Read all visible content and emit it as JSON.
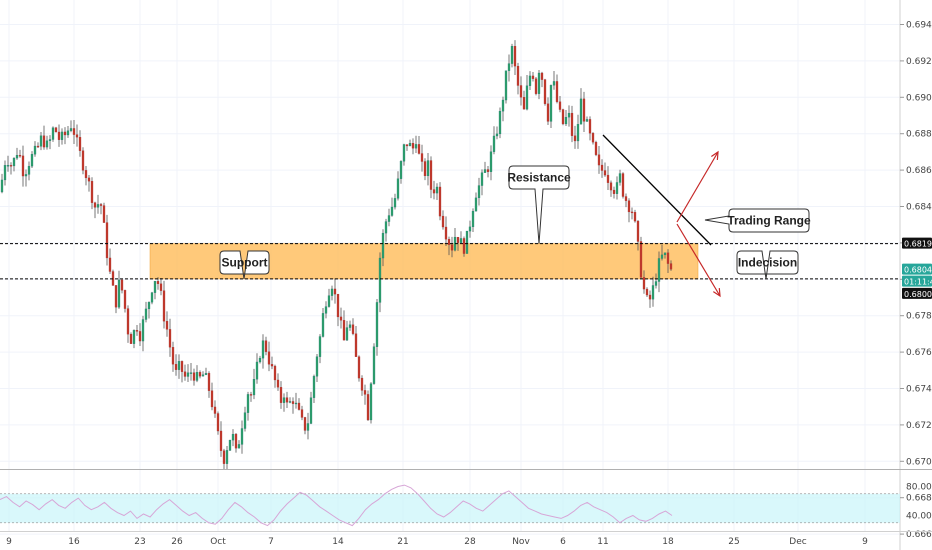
{
  "chart_data": {
    "type": "candlestick",
    "y_axis": {
      "ticks": [
        "0.69400",
        "0.69200",
        "0.69000",
        "0.68800",
        "0.68600",
        "0.68400",
        "0.68200",
        "0.68000",
        "0.67800",
        "0.67600",
        "0.67400",
        "0.67200",
        "0.67000",
        "0.66800",
        "0.66600"
      ],
      "range": [
        0.6652,
        0.6956
      ]
    },
    "x_axis": {
      "ticks": [
        "9",
        "16",
        "23",
        "26",
        "Oct",
        "7",
        "14",
        "21",
        "28",
        "Nov",
        "6",
        "11",
        "18",
        "25",
        "Dec",
        "9"
      ]
    },
    "levels": {
      "resistance": 0.68196,
      "support": 0.68002,
      "current": 0.68048
    },
    "price_tags": [
      {
        "label": "0.68196",
        "style": "dark"
      },
      {
        "label": "0.68048",
        "style": "green"
      },
      {
        "label": "01:11:48",
        "style": "green"
      },
      {
        "label": "0.68002",
        "style": "dark"
      }
    ],
    "annotations": [
      {
        "text": "Resistance"
      },
      {
        "text": "Support"
      },
      {
        "text": "Trading Range"
      },
      {
        "text": "Indecision"
      }
    ],
    "close_path": [
      [
        0,
        0.6848
      ],
      [
        6,
        0.6868
      ],
      [
        12,
        0.6862
      ],
      [
        18,
        0.6872
      ],
      [
        24,
        0.6858
      ],
      [
        30,
        0.6866
      ],
      [
        36,
        0.687
      ],
      [
        42,
        0.6878
      ],
      [
        48,
        0.6872
      ],
      [
        54,
        0.6884
      ],
      [
        60,
        0.6876
      ],
      [
        66,
        0.688
      ],
      [
        72,
        0.6886
      ],
      [
        78,
        0.6872
      ],
      [
        84,
        0.6862
      ],
      [
        90,
        0.685
      ],
      [
        96,
        0.6838
      ],
      [
        100,
        0.6845
      ],
      [
        104,
        0.6828
      ],
      [
        108,
        0.681
      ],
      [
        112,
        0.6796
      ],
      [
        116,
        0.6788
      ],
      [
        120,
        0.68
      ],
      [
        124,
        0.6788
      ],
      [
        128,
        0.6772
      ],
      [
        132,
        0.6766
      ],
      [
        136,
        0.6776
      ],
      [
        140,
        0.677
      ],
      [
        144,
        0.6778
      ],
      [
        148,
        0.6786
      ],
      [
        152,
        0.6796
      ],
      [
        156,
        0.6802
      ],
      [
        160,
        0.6794
      ],
      [
        164,
        0.678
      ],
      [
        168,
        0.677
      ],
      [
        172,
        0.6756
      ],
      [
        176,
        0.6748
      ],
      [
        180,
        0.6752
      ],
      [
        186,
        0.6745
      ],
      [
        192,
        0.675
      ],
      [
        198,
        0.6744
      ],
      [
        204,
        0.6748
      ],
      [
        210,
        0.6738
      ],
      [
        216,
        0.672
      ],
      [
        220,
        0.6708
      ],
      [
        224,
        0.6702
      ],
      [
        228,
        0.671
      ],
      [
        232,
        0.6716
      ],
      [
        236,
        0.6704
      ],
      [
        240,
        0.6714
      ],
      [
        244,
        0.6728
      ],
      [
        248,
        0.6738
      ],
      [
        252,
        0.6736
      ],
      [
        256,
        0.6748
      ],
      [
        260,
        0.676
      ],
      [
        264,
        0.6766
      ],
      [
        268,
        0.6758
      ],
      [
        272,
        0.675
      ],
      [
        276,
        0.6742
      ],
      [
        280,
        0.6732
      ],
      [
        284,
        0.6738
      ],
      [
        288,
        0.6728
      ],
      [
        292,
        0.6736
      ],
      [
        296,
        0.673
      ],
      [
        300,
        0.6724
      ],
      [
        304,
        0.6718
      ],
      [
        308,
        0.6722
      ],
      [
        312,
        0.6738
      ],
      [
        316,
        0.6756
      ],
      [
        320,
        0.6768
      ],
      [
        324,
        0.6784
      ],
      [
        328,
        0.6794
      ],
      [
        332,
        0.6798
      ],
      [
        336,
        0.6788
      ],
      [
        340,
        0.6776
      ],
      [
        344,
        0.6766
      ],
      [
        348,
        0.6778
      ],
      [
        352,
        0.677
      ],
      [
        356,
        0.6756
      ],
      [
        360,
        0.6745
      ],
      [
        364,
        0.674
      ],
      [
        368,
        0.6726
      ],
      [
        372,
        0.6752
      ],
      [
        376,
        0.678
      ],
      [
        380,
        0.6812
      ],
      [
        384,
        0.6828
      ],
      [
        388,
        0.6836
      ],
      [
        392,
        0.684
      ],
      [
        396,
        0.6846
      ],
      [
        400,
        0.686
      ],
      [
        404,
        0.6872
      ],
      [
        408,
        0.6876
      ],
      [
        412,
        0.687
      ],
      [
        416,
        0.6878
      ],
      [
        420,
        0.6864
      ],
      [
        424,
        0.6858
      ],
      [
        428,
        0.6862
      ],
      [
        432,
        0.6846
      ],
      [
        436,
        0.6854
      ],
      [
        440,
        0.6838
      ],
      [
        444,
        0.683
      ],
      [
        448,
        0.6822
      ],
      [
        452,
        0.6818
      ],
      [
        456,
        0.6826
      ],
      [
        460,
        0.682
      ],
      [
        464,
        0.6818
      ],
      [
        468,
        0.6824
      ],
      [
        472,
        0.6838
      ],
      [
        476,
        0.6848
      ],
      [
        480,
        0.6852
      ],
      [
        484,
        0.6858
      ],
      [
        488,
        0.6862
      ],
      [
        492,
        0.687
      ],
      [
        496,
        0.688
      ],
      [
        500,
        0.689
      ],
      [
        504,
        0.6904
      ],
      [
        508,
        0.6918
      ],
      [
        512,
        0.6926
      ],
      [
        516,
        0.6912
      ],
      [
        520,
        0.69
      ],
      [
        524,
        0.6892
      ],
      [
        528,
        0.6908
      ],
      [
        532,
        0.6916
      ],
      [
        536,
        0.6904
      ],
      [
        540,
        0.692
      ],
      [
        544,
        0.6902
      ],
      [
        548,
        0.689
      ],
      [
        552,
        0.6912
      ],
      [
        556,
        0.69
      ],
      [
        560,
        0.689
      ],
      [
        564,
        0.6884
      ],
      [
        568,
        0.6892
      ],
      [
        572,
        0.688
      ],
      [
        576,
        0.6872
      ],
      [
        580,
        0.69
      ],
      [
        584,
        0.689
      ],
      [
        588,
        0.6882
      ],
      [
        592,
        0.6874
      ],
      [
        596,
        0.6866
      ],
      [
        600,
        0.6858
      ],
      [
        604,
        0.6862
      ],
      [
        608,
        0.6856
      ],
      [
        612,
        0.6852
      ],
      [
        616,
        0.6848
      ],
      [
        620,
        0.6856
      ],
      [
        624,
        0.6846
      ],
      [
        628,
        0.6842
      ],
      [
        632,
        0.6838
      ],
      [
        636,
        0.6826
      ],
      [
        640,
        0.6808
      ],
      [
        644,
        0.6794
      ],
      [
        648,
        0.6786
      ],
      [
        652,
        0.6792
      ],
      [
        656,
        0.6802
      ],
      [
        660,
        0.681
      ],
      [
        664,
        0.6814
      ],
      [
        668,
        0.6808
      ],
      [
        672,
        0.6804
      ]
    ],
    "rsi": {
      "ticks": [
        "80.00",
        "40.00"
      ],
      "range": [
        20,
        100
      ],
      "band": [
        30,
        70
      ],
      "values": [
        62,
        66,
        58,
        52,
        60,
        55,
        48,
        56,
        62,
        54,
        50,
        58,
        64,
        54,
        48,
        52,
        58,
        50,
        44,
        40,
        46,
        36,
        42,
        38,
        48,
        56,
        62,
        54,
        46,
        40,
        44,
        36,
        30,
        28,
        36,
        48,
        58,
        52,
        44,
        38,
        30,
        26,
        34,
        46,
        56,
        64,
        72,
        68,
        60,
        52,
        46,
        40,
        34,
        30,
        26,
        36,
        48,
        56,
        62,
        70,
        76,
        80,
        82,
        78,
        70,
        60,
        50,
        42,
        38,
        44,
        52,
        60,
        56,
        50,
        46,
        54,
        62,
        70,
        74,
        66,
        58,
        50,
        46,
        42,
        40,
        38,
        36,
        40,
        46,
        54,
        58,
        52,
        48,
        44,
        38,
        30,
        36,
        40,
        34,
        32,
        36,
        42,
        46,
        40
      ]
    }
  }
}
